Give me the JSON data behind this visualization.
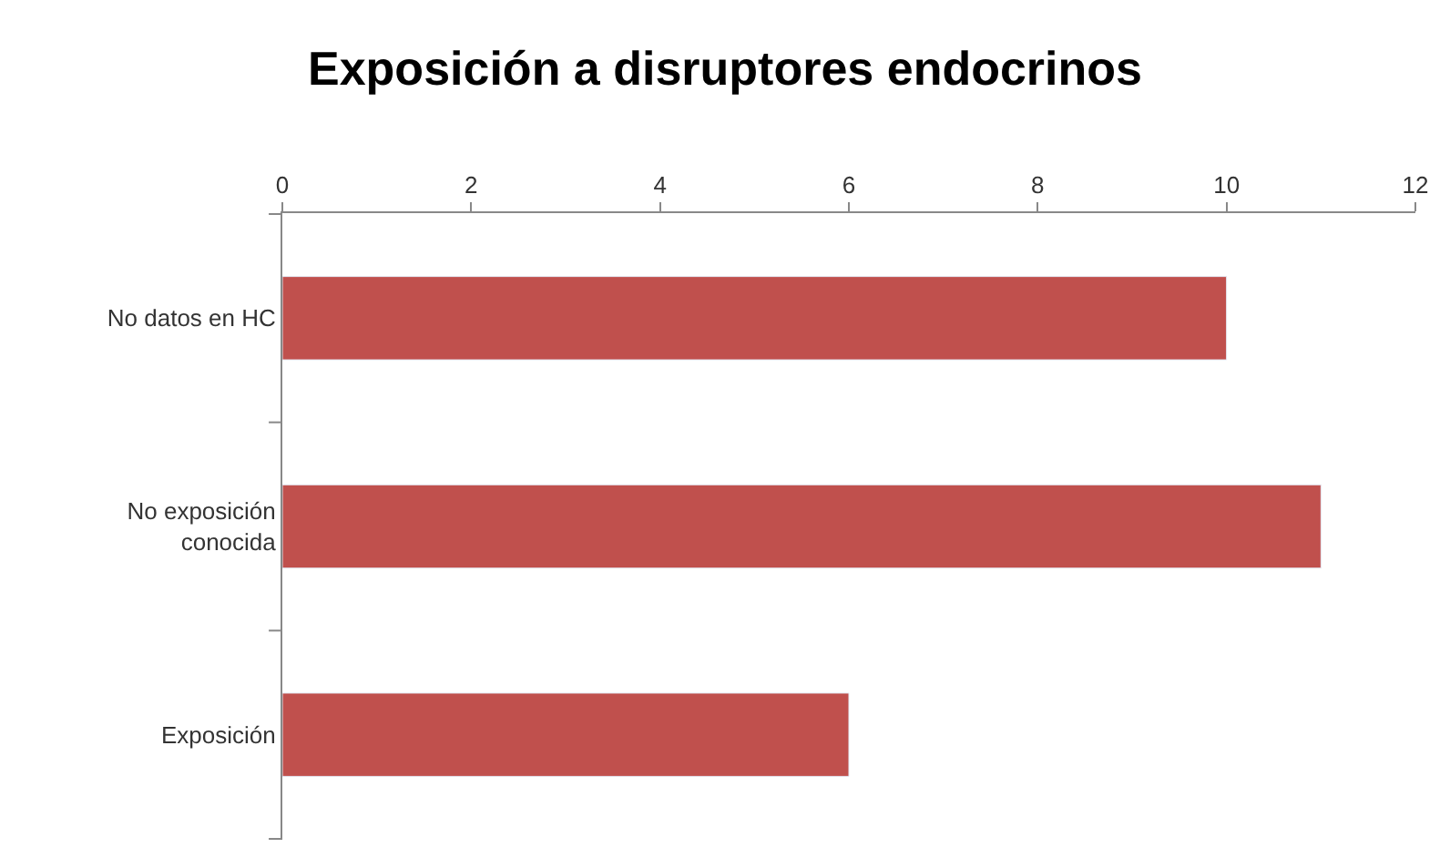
{
  "chart_data": {
    "type": "bar",
    "orientation": "horizontal",
    "title": "Exposición a disruptores endocrinos",
    "categories": [
      "No datos en HC",
      "No exposición conocida",
      "Exposición"
    ],
    "values": [
      10,
      11,
      6
    ],
    "color": "#c0504d",
    "xlim": [
      0,
      12
    ],
    "xticks": [
      0,
      2,
      4,
      6,
      8,
      10,
      12
    ]
  }
}
